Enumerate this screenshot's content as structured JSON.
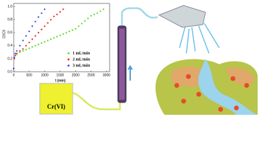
{
  "chart_data": {
    "type": "scatter",
    "x_label": "t (min)",
    "y_label": "Ct/C0",
    "xlim": [
      0,
      3100
    ],
    "ylim": [
      0,
      1.05
    ],
    "xticks": [
      0,
      500,
      1000,
      1500,
      2000,
      2500,
      3000
    ],
    "yticks": [
      {
        "value": 0,
        "label": "0.0"
      },
      {
        "value": 0.2,
        "label": "0.2"
      },
      {
        "value": 0.4,
        "label": "0.4"
      },
      {
        "value": 0.6,
        "label": "0.6"
      },
      {
        "value": 0.8,
        "label": "0.8"
      },
      {
        "value": 1,
        "label": "1.0"
      }
    ],
    "series": [
      {
        "name": "1 mL/min",
        "color": "#66dd33",
        "x": [
          0,
          20,
          50,
          100,
          200,
          300,
          400,
          500,
          600,
          700,
          800,
          900,
          1000,
          1100,
          1200,
          1300,
          1400,
          1500,
          1600,
          1700,
          1800,
          1900,
          2000,
          2100,
          2200,
          2300,
          2400,
          2500,
          2600,
          2700,
          2800,
          2900
        ],
        "values": [
          0.05,
          0.2,
          0.25,
          0.27,
          0.3,
          0.32,
          0.34,
          0.36,
          0.38,
          0.4,
          0.42,
          0.44,
          0.46,
          0.48,
          0.5,
          0.52,
          0.54,
          0.56,
          0.58,
          0.6,
          0.62,
          0.64,
          0.66,
          0.7,
          0.74,
          0.78,
          0.82,
          0.86,
          0.88,
          0.9,
          0.93,
          0.96
        ]
      },
      {
        "name": "2 mL/min",
        "color": "#ee3333",
        "x": [
          0,
          20,
          50,
          100,
          200,
          300,
          400,
          500,
          600,
          700,
          800,
          900,
          1000,
          1100,
          1200,
          1300,
          1400,
          1500,
          1600
        ],
        "values": [
          0.05,
          0.2,
          0.25,
          0.28,
          0.32,
          0.35,
          0.4,
          0.45,
          0.5,
          0.55,
          0.6,
          0.65,
          0.7,
          0.75,
          0.8,
          0.85,
          0.88,
          0.92,
          0.96
        ]
      },
      {
        "name": "3 mL/min",
        "color": "#3355ee",
        "x": [
          0,
          20,
          50,
          100,
          200,
          300,
          400,
          500,
          600,
          700,
          800,
          900,
          1000
        ],
        "values": [
          0.05,
          0.22,
          0.28,
          0.32,
          0.4,
          0.48,
          0.55,
          0.62,
          0.7,
          0.77,
          0.84,
          0.9,
          0.96
        ]
      }
    ]
  },
  "illustration": {
    "beaker_label": "Cr(VI)"
  }
}
